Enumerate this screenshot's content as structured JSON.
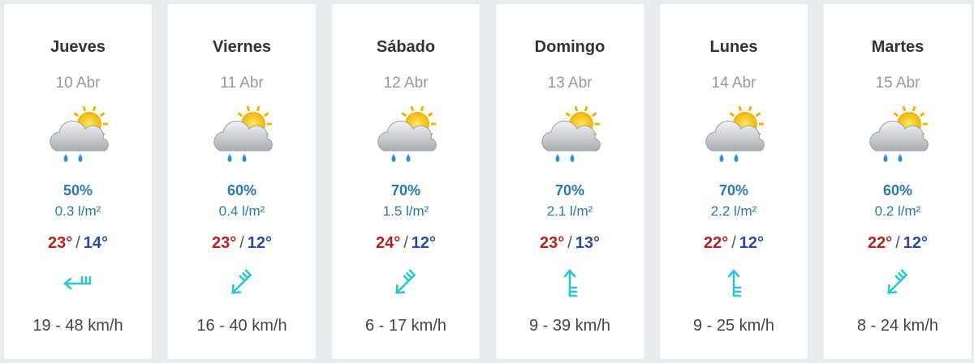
{
  "separator": "/",
  "days": [
    {
      "name": "Jueves",
      "date": "10 Abr",
      "precip_prob": "50%",
      "precip_amount": "0.3 l/m²",
      "max": "23°",
      "min": "14°",
      "wind": "19 - 48 km/h"
    },
    {
      "name": "Viernes",
      "date": "11 Abr",
      "precip_prob": "60%",
      "precip_amount": "0.4 l/m²",
      "max": "23°",
      "min": "12°",
      "wind": "16 - 40 km/h"
    },
    {
      "name": "Sábado",
      "date": "12 Abr",
      "precip_prob": "70%",
      "precip_amount": "1.5 l/m²",
      "max": "24°",
      "min": "12°",
      "wind": "6 - 17 km/h"
    },
    {
      "name": "Domingo",
      "date": "13 Abr",
      "precip_prob": "70%",
      "precip_amount": "2.1 l/m²",
      "max": "23°",
      "min": "13°",
      "wind": "9 - 39 km/h"
    },
    {
      "name": "Lunes",
      "date": "14 Abr",
      "precip_prob": "70%",
      "precip_amount": "2.2 l/m²",
      "max": "22°",
      "min": "12°",
      "wind": "9 - 25 km/h"
    },
    {
      "name": "Martes",
      "date": "15 Abr",
      "precip_prob": "60%",
      "precip_amount": "0.2 l/m²",
      "max": "22°",
      "min": "12°",
      "wind": "8 - 24 km/h"
    }
  ]
}
